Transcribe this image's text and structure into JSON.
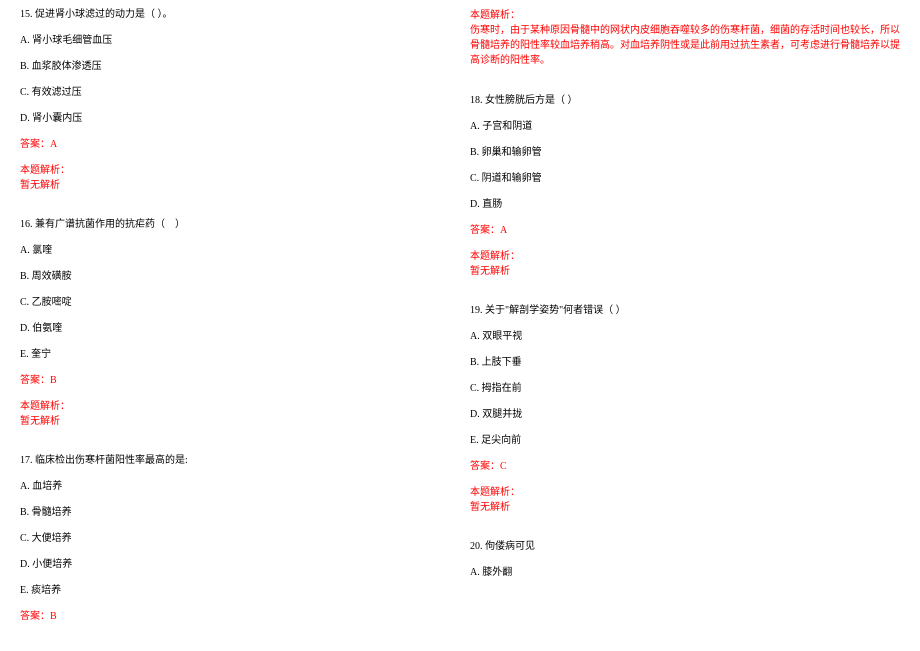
{
  "left": {
    "q15": {
      "stem": "15. 促进肾小球滤过的动力是（ ）。",
      "A": "A. 肾小球毛细管血压",
      "B": "B. 血浆胶体渗透压",
      "C": "C. 有效滤过压",
      "D": "D. 肾小囊内压",
      "ans": "答案：A",
      "ex1": "本题解析：",
      "ex2": "暂无解析"
    },
    "q16": {
      "stem": "16. 兼有广谱抗菌作用的抗疟药（　）",
      "A": "A. 氯喹",
      "B": "B. 周效磺胺",
      "C": "C. 乙胺嘧啶",
      "D": "D. 伯氨喹",
      "E": "E. 奎宁",
      "ans": "答案：B",
      "ex1": "本题解析：",
      "ex2": "暂无解析"
    },
    "q17": {
      "stem": "17. 临床检出伤寒杆菌阳性率最高的是:",
      "A": "A. 血培养",
      "B": "B. 骨髓培养",
      "C": "C. 大便培养",
      "D": "D. 小便培养",
      "E": "E. 痰培养",
      "ans": "答案：B"
    }
  },
  "right": {
    "q17ex": {
      "ex1": "本题解析：",
      "ex2": "伤寒时，由于某种原因骨髓中的网状内皮细胞吞噬较多的伤寒杆菌，细菌的存活时间也较长，所以骨髓培养的阳性率较血培养稍高。对血培养阴性或是此前用过抗生素者，可考虑进行骨髓培养以提高诊断的阳性率。"
    },
    "q18": {
      "stem": "18. 女性膀胱后方是（ ）",
      "A": "A. 子宫和阴道",
      "B": "B. 卵巢和输卵管",
      "C": "C. 阴道和输卵管",
      "D": "D. 直肠",
      "ans": "答案：A",
      "ex1": "本题解析：",
      "ex2": "暂无解析"
    },
    "q19": {
      "stem": "19. 关于\"解剖学姿势\"何者错误（ ）",
      "A": "A. 双眼平视",
      "B": "B. 上肢下垂",
      "C": "C. 拇指在前",
      "D": "D. 双腿并拢",
      "E": "E. 足尖向前",
      "ans": "答案：C",
      "ex1": "本题解析：",
      "ex2": "暂无解析"
    },
    "q20": {
      "stem": "20. 佝偻病可见",
      "A": "A. 膝外翻"
    }
  }
}
